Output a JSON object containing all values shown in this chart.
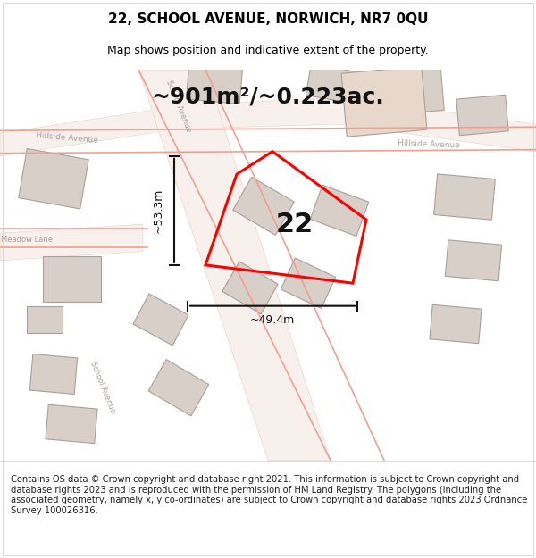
{
  "title": "22, SCHOOL AVENUE, NORWICH, NR7 0QU",
  "subtitle": "Map shows position and indicative extent of the property.",
  "area_label": "~901m²/~0.223ac.",
  "property_number": "22",
  "dim_height": "~53.3m",
  "dim_width": "~49.4m",
  "footer": "Contains OS data © Crown copyright and database right 2021. This information is subject to Crown copyright and database rights 2023 and is reproduced with the permission of HM Land Registry. The polygons (including the associated geometry, namely x, y co-ordinates) are subject to Crown copyright and database rights 2023 Ordnance Survey 100026316.",
  "bg_color": "#f5ede8",
  "map_bg": "#f0e8e2",
  "road_color": "#f5ede8",
  "building_color": "#d9cfc9",
  "building_outline": "#aaa09a",
  "road_outline": "#e8b8a0",
  "property_fill": "none",
  "property_edge": "#ff0000",
  "dim_line_color": "#000000",
  "title_fontsize": 11,
  "subtitle_fontsize": 9,
  "area_fontsize": 18,
  "number_fontsize": 22,
  "footer_fontsize": 7.2,
  "street_label_color": "#aaa099",
  "footer_bg": "#ffffff"
}
